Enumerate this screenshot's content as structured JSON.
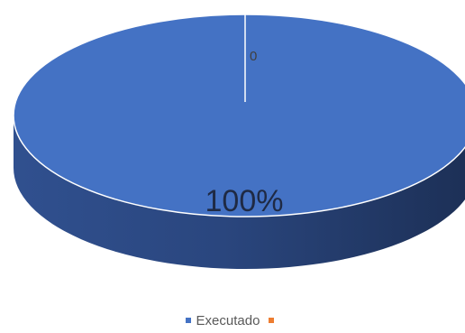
{
  "chart_data": {
    "type": "pie",
    "style": "3d",
    "series": [
      {
        "name": "Executado",
        "value": 100,
        "label": "100%",
        "color": "#4472c4"
      },
      {
        "name": "",
        "value": 0,
        "label": "0",
        "color": "#ed7d31"
      }
    ]
  }
}
